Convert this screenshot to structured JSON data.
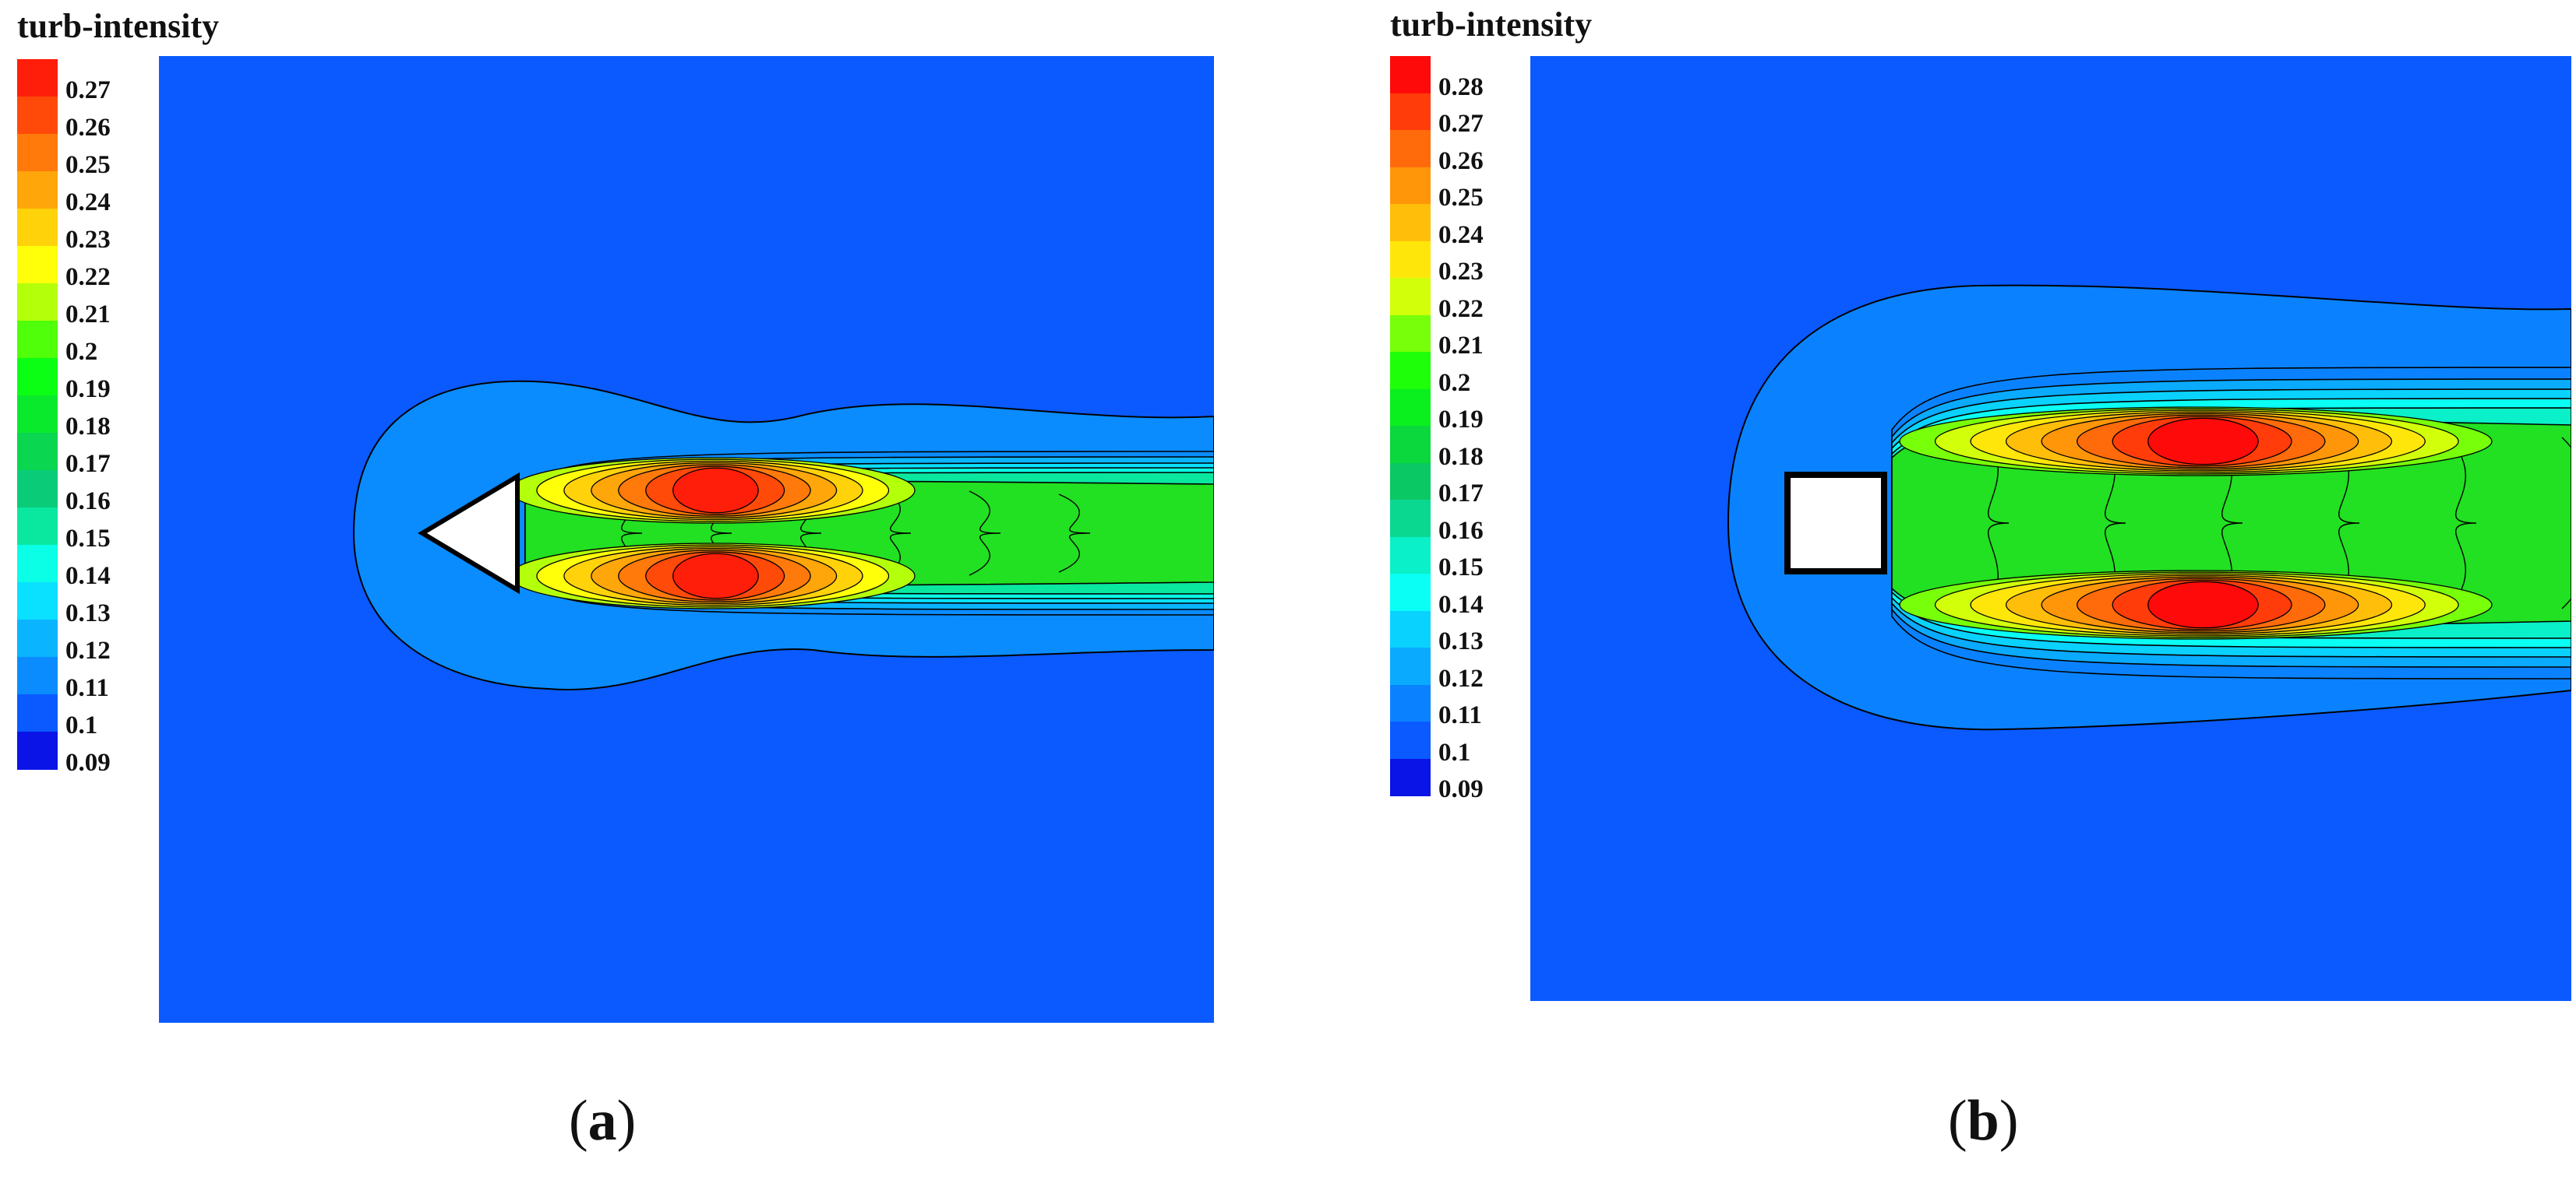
{
  "chart_data": [
    {
      "type": "heatmap",
      "panel_label": "a",
      "obstacle": "triangle",
      "legend_title": "turb-intensity",
      "levels": [
        0.27,
        0.26,
        0.25,
        0.24,
        0.23,
        0.22,
        0.21,
        0.2,
        0.19,
        0.18,
        0.17,
        0.16,
        0.15,
        0.14,
        0.13,
        0.12,
        0.11,
        0.1,
        0.09
      ],
      "colors": [
        "#ff1e0a",
        "#ff4a0a",
        "#ff7a0a",
        "#ffa60a",
        "#ffd20a",
        "#ffff0a",
        "#b4ff0a",
        "#50ff0a",
        "#0aff14",
        "#0aea2c",
        "#0ad650",
        "#0acc78",
        "#0ae8a0",
        "#0affe6",
        "#0ae0ff",
        "#0ab4ff",
        "#0a8cff",
        "#0a5aff",
        "#0a14e6"
      ],
      "background_color": "#0a5aff"
    },
    {
      "type": "heatmap",
      "panel_label": "b",
      "obstacle": "square",
      "legend_title": "turb-intensity",
      "levels": [
        0.28,
        0.27,
        0.26,
        0.25,
        0.24,
        0.23,
        0.22,
        0.21,
        0.2,
        0.19,
        0.18,
        0.17,
        0.16,
        0.15,
        0.14,
        0.13,
        0.12,
        0.11,
        0.1,
        0.09
      ],
      "colors": [
        "#ff0a0a",
        "#ff3c0a",
        "#ff6a0a",
        "#ff960a",
        "#ffbe0a",
        "#ffe60a",
        "#d2ff0a",
        "#78ff0a",
        "#1eff0a",
        "#0aef1e",
        "#0ad83c",
        "#0ac864",
        "#0ad890",
        "#0af0c8",
        "#0afff5",
        "#0ad2ff",
        "#0aaaff",
        "#0a82ff",
        "#0a5aff",
        "#0a14e6"
      ],
      "background_color": "#0a5aff"
    }
  ]
}
